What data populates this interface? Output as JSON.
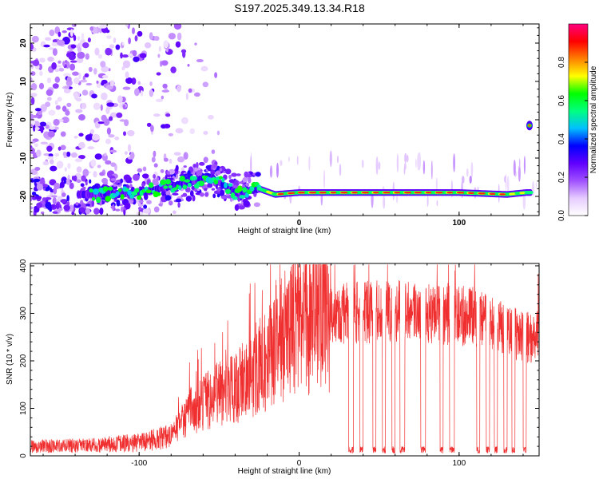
{
  "title": "S197.2025.349.13.34.R18",
  "colors": {
    "snr_line": "#f03030",
    "ridge_core": "#e8202a",
    "axis": "#000000"
  },
  "chart_data": [
    {
      "type": "heatmap",
      "xlabel": "Height of straight line (km)",
      "ylabel": "Frequency (Hz)",
      "xlim": [
        -168,
        150
      ],
      "ylim": [
        -25,
        25
      ],
      "x_ticks": [
        "-100",
        "0",
        "100"
      ],
      "y_ticks": [
        "20",
        "10",
        "0",
        "-10",
        "-20"
      ],
      "x_tick_values": [
        -100,
        0,
        100
      ],
      "y_tick_values": [
        20,
        10,
        0,
        -10,
        -20
      ],
      "colorbar": {
        "label": "Normalized spectral amplitude",
        "range": [
          0,
          1
        ],
        "ticks": [
          "0.0",
          "0.2",
          "0.4",
          "0.6",
          "0.8"
        ],
        "tick_values": [
          0,
          0.2,
          0.4,
          0.6,
          0.8
        ],
        "colormap": [
          "#ffffff",
          "#e6ccff",
          "#a050ff",
          "#6000ff",
          "#0000ff",
          "#00bfff",
          "#00ff80",
          "#00ff00",
          "#ffff00",
          "#ff8000",
          "#ff0000",
          "#ff0080"
        ]
      },
      "ridge": [
        {
          "x": -125,
          "y": -19.5
        },
        {
          "x": -100,
          "y": -19
        },
        {
          "x": -75,
          "y": -17
        },
        {
          "x": -55,
          "y": -15
        },
        {
          "x": -40,
          "y": -19
        },
        {
          "x": -25,
          "y": -18
        },
        {
          "x": -15,
          "y": -19.5
        },
        {
          "x": 0,
          "y": -19
        },
        {
          "x": 50,
          "y": -19
        },
        {
          "x": 100,
          "y": -19
        },
        {
          "x": 130,
          "y": -19.5
        },
        {
          "x": 142,
          "y": -19
        }
      ],
      "secondary_feature": {
        "x": 144,
        "y": -1.5
      }
    },
    {
      "type": "line",
      "xlabel": "Height of straight line (km)",
      "ylabel": "SNR (10 * v/v)",
      "xlim": [
        -168,
        150
      ],
      "ylim": [
        0,
        405
      ],
      "x_ticks": [
        "-100",
        "0",
        "100"
      ],
      "y_ticks": [
        "0",
        "100",
        "200",
        "300",
        "400"
      ],
      "x_tick_values": [
        -100,
        0,
        100
      ],
      "y_tick_values": [
        0,
        100,
        200,
        300,
        400
      ],
      "envelope": [
        {
          "x": -168,
          "y": 20
        },
        {
          "x": -130,
          "y": 22
        },
        {
          "x": -100,
          "y": 28
        },
        {
          "x": -80,
          "y": 40
        },
        {
          "x": -70,
          "y": 90
        },
        {
          "x": -50,
          "y": 130
        },
        {
          "x": -35,
          "y": 160
        },
        {
          "x": -20,
          "y": 200
        },
        {
          "x": -15,
          "y": 240
        },
        {
          "x": 0,
          "y": 270
        },
        {
          "x": 15,
          "y": 295
        },
        {
          "x": 30,
          "y": 300
        },
        {
          "x": 60,
          "y": 305
        },
        {
          "x": 90,
          "y": 300
        },
        {
          "x": 110,
          "y": 290
        },
        {
          "x": 125,
          "y": 270
        },
        {
          "x": 140,
          "y": 250
        },
        {
          "x": 150,
          "y": 255
        }
      ],
      "dropouts": [
        {
          "x0": 31,
          "x1": 34
        },
        {
          "x0": 38,
          "x1": 40
        },
        {
          "x0": 46,
          "x1": 48
        },
        {
          "x0": 52,
          "x1": 54
        },
        {
          "x0": 58,
          "x1": 60
        },
        {
          "x0": 63,
          "x1": 66
        },
        {
          "x0": 76,
          "x1": 79
        },
        {
          "x0": 88,
          "x1": 90
        },
        {
          "x0": 94,
          "x1": 97
        },
        {
          "x0": 111,
          "x1": 113
        },
        {
          "x0": 117,
          "x1": 119
        },
        {
          "x0": 122,
          "x1": 124
        },
        {
          "x0": 128,
          "x1": 130
        },
        {
          "x0": 133,
          "x1": 135
        },
        {
          "x0": 140,
          "x1": 142
        }
      ]
    }
  ]
}
